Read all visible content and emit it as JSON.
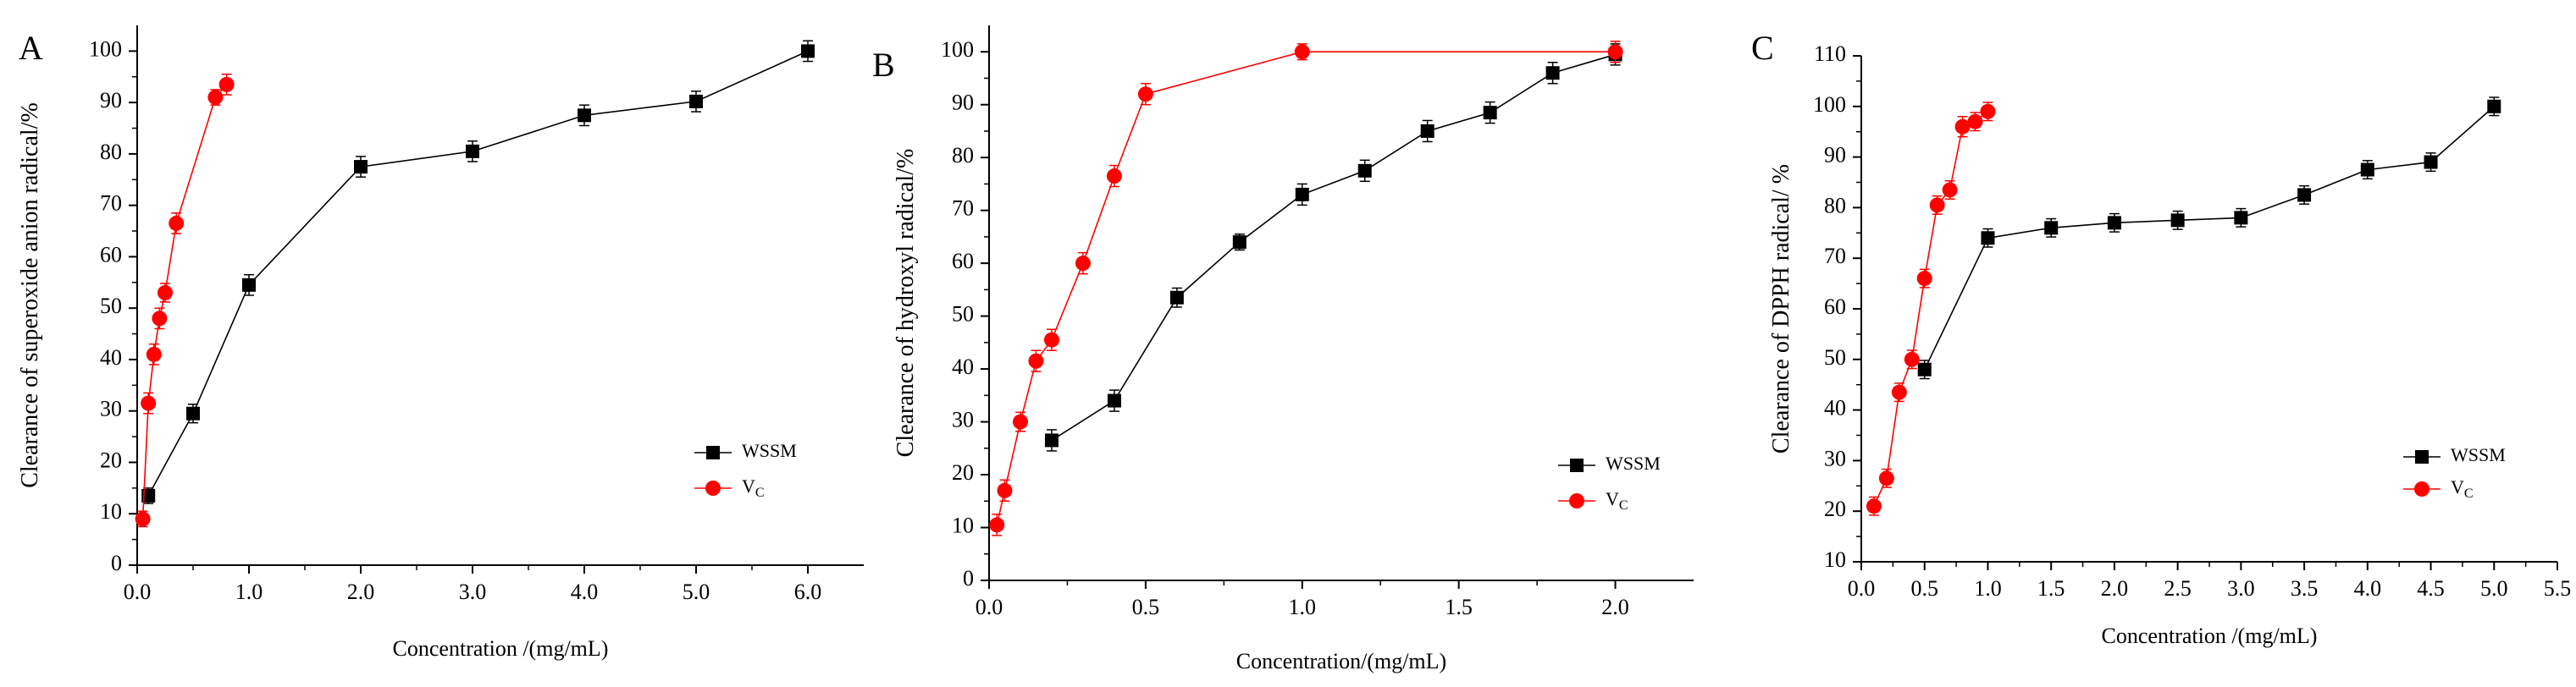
{
  "figure": {
    "panel_count": 3
  },
  "chart_data": [
    {
      "type": "line",
      "panel_label": "A",
      "title": "",
      "xlabel": "Concentration /(mg/mL)",
      "ylabel": "Clearance of superoxide anion radical/%",
      "xlim": [
        0,
        6.5
      ],
      "ylim": [
        0,
        105
      ],
      "xticks": [
        0,
        1,
        2,
        3,
        4,
        5,
        6
      ],
      "xtick_labels": [
        "0.0",
        "1.0",
        "2.0",
        "3.0",
        "4.0",
        "5.0",
        "6.0"
      ],
      "yticks": [
        0,
        10,
        20,
        30,
        40,
        50,
        60,
        70,
        80,
        90,
        100
      ],
      "ytick_labels": [
        "0",
        "10",
        "20",
        "30",
        "40",
        "50",
        "60",
        "70",
        "80",
        "90",
        "100"
      ],
      "legend_position": "right",
      "series": [
        {
          "name": "WSSM",
          "name_sub": "",
          "color": "#000000",
          "marker": "square",
          "x": [
            0.1,
            0.5,
            1,
            2,
            3,
            4,
            5,
            6
          ],
          "y": [
            13.5,
            29.5,
            54.5,
            77.5,
            80.5,
            87.5,
            90.2,
            100
          ],
          "err": [
            1.5,
            1.8,
            2.0,
            2.0,
            2.0,
            2.0,
            2.0,
            2.0
          ]
        },
        {
          "name": "V",
          "name_sub": "C",
          "color": "#ff0000",
          "marker": "circle",
          "x": [
            0.05,
            0.1,
            0.15,
            0.2,
            0.25,
            0.35,
            0.7,
            0.8
          ],
          "y": [
            9,
            31.5,
            41,
            48,
            53,
            66.5,
            91,
            93.5
          ],
          "err": [
            1.5,
            2.0,
            2.0,
            2.0,
            1.8,
            2.0,
            1.5,
            2.0
          ]
        }
      ]
    },
    {
      "type": "line",
      "panel_label": "B",
      "title": "",
      "xlabel": "Concentration/(mg/mL)",
      "ylabel": "Clearance of  hydroxyl radical/%",
      "xlim": [
        0,
        2.25
      ],
      "ylim": [
        0,
        105
      ],
      "xticks": [
        0,
        0.5,
        1,
        1.5,
        2
      ],
      "xtick_labels": [
        "0.0",
        "0.5",
        "1.0",
        "1.5",
        "2.0"
      ],
      "yticks": [
        0,
        10,
        20,
        30,
        40,
        50,
        60,
        70,
        80,
        90,
        100
      ],
      "ytick_labels": [
        "0",
        "10",
        "20",
        "30",
        "40",
        "50",
        "60",
        "70",
        "80",
        "90",
        "100"
      ],
      "legend_position": "right",
      "series": [
        {
          "name": "WSSM",
          "name_sub": "",
          "color": "#000000",
          "marker": "square",
          "x": [
            0.2,
            0.4,
            0.6,
            0.8,
            1.0,
            1.2,
            1.4,
            1.6,
            1.8,
            2.0
          ],
          "y": [
            26.5,
            34,
            53.5,
            64,
            73,
            77.5,
            85,
            88.5,
            96,
            99.5
          ],
          "err": [
            2.0,
            2.0,
            1.8,
            1.5,
            2.0,
            2.0,
            2.0,
            2.0,
            2.0,
            2.0
          ]
        },
        {
          "name": "V",
          "name_sub": "C",
          "color": "#ff0000",
          "marker": "circle",
          "x": [
            0.025,
            0.05,
            0.1,
            0.15,
            0.2,
            0.3,
            0.4,
            0.5,
            1.0,
            2.0
          ],
          "y": [
            10.5,
            17,
            30,
            41.5,
            45.5,
            60,
            76.5,
            92,
            100,
            100
          ],
          "err": [
            2.0,
            2.0,
            1.8,
            2.0,
            2.0,
            2.0,
            2.0,
            2.0,
            1.5,
            2.0
          ]
        }
      ]
    },
    {
      "type": "line",
      "panel_label": "C",
      "title": "",
      "xlabel": "Concentration /(mg/mL)",
      "ylabel": "Clearance of DPPH radical/ %",
      "xlim": [
        0,
        5.5
      ],
      "ylim": [
        10,
        110
      ],
      "xticks": [
        0,
        0.5,
        1,
        1.5,
        2,
        2.5,
        3,
        3.5,
        4,
        4.5,
        5,
        5.5
      ],
      "xtick_labels": [
        "0.0",
        "0.5",
        "1.0",
        "1.5",
        "2.0",
        "2.5",
        "3.0",
        "3.5",
        "4.0",
        "4.5",
        "5.0",
        "5.5"
      ],
      "yticks": [
        10,
        20,
        30,
        40,
        50,
        60,
        70,
        80,
        90,
        100,
        110
      ],
      "ytick_labels": [
        "10",
        "20",
        "30",
        "40",
        "50",
        "60",
        "70",
        "80",
        "90",
        "100",
        "110"
      ],
      "legend_position": "right",
      "series": [
        {
          "name": "WSSM",
          "name_sub": "",
          "color": "#000000",
          "marker": "square",
          "x": [
            0.5,
            1.0,
            1.5,
            2.0,
            2.5,
            3.0,
            3.5,
            4.0,
            4.5,
            5.0
          ],
          "y": [
            48,
            74,
            76,
            77,
            77.5,
            78,
            82.5,
            87.5,
            89,
            100
          ],
          "err": [
            1.8,
            1.8,
            1.8,
            1.8,
            1.8,
            1.8,
            1.8,
            1.8,
            1.8,
            1.8
          ]
        },
        {
          "name": "V",
          "name_sub": "C",
          "color": "#ff0000",
          "marker": "circle",
          "x": [
            0.1,
            0.2,
            0.3,
            0.4,
            0.5,
            0.6,
            0.7,
            0.8,
            0.9,
            1.0
          ],
          "y": [
            21,
            26.5,
            43.5,
            50,
            66,
            80.5,
            83.5,
            96,
            97,
            99
          ],
          "err": [
            1.8,
            1.8,
            1.8,
            1.8,
            1.8,
            1.8,
            1.8,
            2.0,
            1.8,
            1.8
          ]
        }
      ]
    }
  ]
}
